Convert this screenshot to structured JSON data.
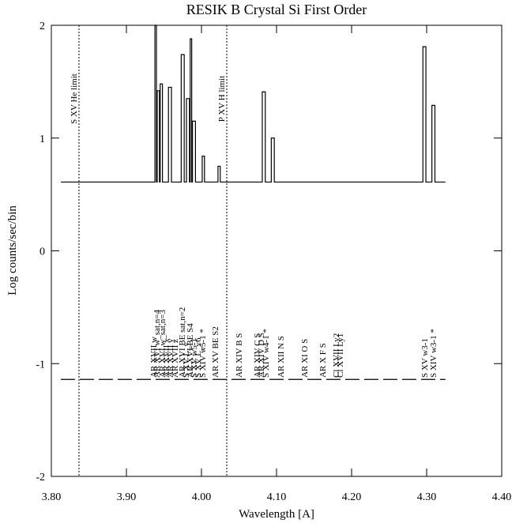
{
  "chart_data": {
    "type": "line",
    "title": "RESIK B Crystal Si First Order",
    "xlabel": "Wavelength [A]",
    "ylabel": "Log counts/sec/bin",
    "xlim": [
      3.8,
      4.4
    ],
    "ylim": [
      -2,
      2
    ],
    "xticks": [
      {
        "value": 3.8,
        "label": "3.80"
      },
      {
        "value": 3.9,
        "label": "3.90"
      },
      {
        "value": 4.0,
        "label": "4.00"
      },
      {
        "value": 4.1,
        "label": "4.10"
      },
      {
        "value": 4.2,
        "label": "4.20"
      },
      {
        "value": 4.3,
        "label": "4.30"
      },
      {
        "value": 4.4,
        "label": "4.40"
      }
    ],
    "yticks": [
      -2,
      -1,
      0,
      1,
      2
    ],
    "series": [
      {
        "name": "spectrum",
        "color": "#000000",
        "style": "solid",
        "x": [
          3.8126,
          3.938,
          3.938,
          3.94,
          3.94,
          3.941,
          3.941,
          3.944,
          3.944,
          3.945,
          3.945,
          3.948,
          3.948,
          3.956,
          3.956,
          3.96,
          3.96,
          3.973,
          3.973,
          3.977,
          3.977,
          3.98,
          3.98,
          3.984,
          3.984,
          3.985,
          3.985,
          3.987,
          3.987,
          3.988,
          3.988,
          3.992,
          3.992,
          4.001,
          4.001,
          4.004,
          4.004,
          4.022,
          4.022,
          4.025,
          4.025,
          4.081,
          4.081,
          4.085,
          4.085,
          4.093,
          4.093,
          4.097,
          4.097,
          4.295,
          4.295,
          4.299,
          4.299,
          4.307,
          4.307,
          4.311,
          4.311,
          4.325
        ],
        "values": [
          0.61,
          0.61,
          2.0,
          2.0,
          0.61,
          0.61,
          1.42,
          1.42,
          0.61,
          0.61,
          1.48,
          1.48,
          0.61,
          0.61,
          1.45,
          1.45,
          0.61,
          0.61,
          1.74,
          1.74,
          0.61,
          0.61,
          1.35,
          1.35,
          0.61,
          0.61,
          1.88,
          1.88,
          0.61,
          0.61,
          1.15,
          1.15,
          0.61,
          0.61,
          0.84,
          0.84,
          0.61,
          0.61,
          0.75,
          0.75,
          0.61,
          0.61,
          1.41,
          1.41,
          0.61,
          0.61,
          1.0,
          1.0,
          0.61,
          0.61,
          1.81,
          1.81,
          0.61,
          0.61,
          1.29,
          1.29,
          0.61,
          0.61
        ]
      },
      {
        "name": "line level",
        "color": "#000000",
        "style": "dashed",
        "x": [
          3.8126,
          4.325
        ],
        "values": [
          -1.14,
          -1.14
        ]
      }
    ],
    "vlines": [
      {
        "x": 3.8368,
        "label": "S XV He limit"
      },
      {
        "x": 4.0337,
        "label": "P XV H limit"
      }
    ],
    "annotations": [
      {
        "x": 3.9358,
        "text": "AR XVII w"
      },
      {
        "x": 3.94,
        "text": "AR XVI w_sat,n=4"
      },
      {
        "x": 3.9474,
        "text": "AR XVI w_sat,n=3"
      },
      {
        "x": 3.9526,
        "text": "AR XVII x"
      },
      {
        "x": 3.9579,
        "text": "AR XVII y"
      },
      {
        "x": 3.9642,
        "text": "AR XVII z"
      },
      {
        "x": 3.9737,
        "text": "AR XVI BE sat,n=2"
      },
      {
        "x": 3.9789,
        "text": "S XV L_y"
      },
      {
        "x": 3.9842,
        "text": "AR XVI BE S4"
      },
      {
        "x": 3.9895,
        "text": "S XV w5-1"
      },
      {
        "x": 3.9947,
        "text": "S XV L_y6"
      },
      {
        "x": 4.001,
        "text": "S XIV w5-1 *"
      },
      {
        "x": 4.0179,
        "text": "AR XV BE S2"
      },
      {
        "x": 4.0495,
        "text": "AR XIV B S"
      },
      {
        "x": 4.0737,
        "text": "AR XIV C S"
      },
      {
        "x": 4.0789,
        "text": "AR XIV D S"
      },
      {
        "x": 4.0853,
        "text": "S XIV w4-1 *"
      },
      {
        "x": 4.1053,
        "text": "AR XII N S"
      },
      {
        "x": 4.1368,
        "text": "AR XI O S"
      },
      {
        "x": 4.1611,
        "text": "AR X F S"
      },
      {
        "x": 4.1789,
        "text": "Cl XVII Ly2"
      },
      {
        "x": 4.1842,
        "text": "Cl XVII Ly1"
      },
      {
        "x": 4.2968,
        "text": "S XV w3-1"
      },
      {
        "x": 4.3084,
        "text": "S XIV w3-1 *"
      }
    ]
  }
}
